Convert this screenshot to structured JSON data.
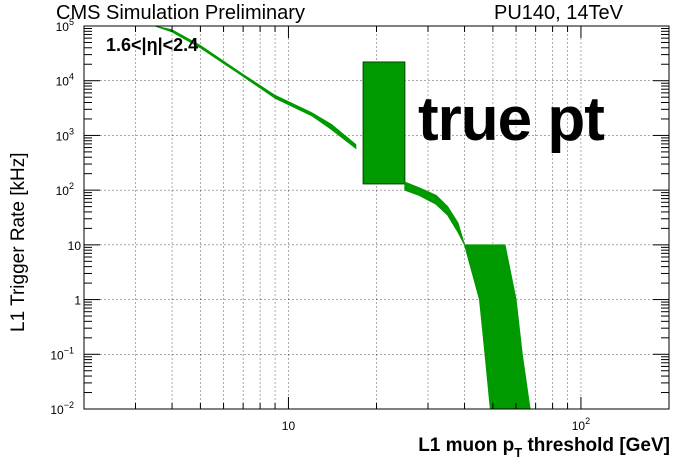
{
  "header": {
    "left": "CMS Simulation Preliminary",
    "right": "PU140, 14TeV"
  },
  "annotations": {
    "region": "1.6<|η|<2.4",
    "overlay": "true pt"
  },
  "chart_data": {
    "type": "area",
    "xlabel_main": "L1 muon p",
    "xlabel_sub": "T",
    "xlabel_tail": " threshold [GeV]",
    "ylabel": "L1 Trigger Rate [kHz]",
    "xscale": "log",
    "yscale": "log",
    "xlim": [
      2,
      200
    ],
    "ylim": [
      0.01,
      100000
    ],
    "grid": true,
    "color": "#009900",
    "x_tick_labels": [
      {
        "value": 10,
        "base": "10",
        "exp": ""
      },
      {
        "value": 100,
        "base": "10",
        "exp": "2"
      }
    ],
    "y_tick_labels": [
      {
        "value": 0.01,
        "base": "10",
        "exp": "−2"
      },
      {
        "value": 0.1,
        "base": "10",
        "exp": "−1"
      },
      {
        "value": 1,
        "base": "1",
        "exp": ""
      },
      {
        "value": 10,
        "base": "10",
        "exp": ""
      },
      {
        "value": 100,
        "base": "10",
        "exp": "2"
      },
      {
        "value": 1000,
        "base": "10",
        "exp": "3"
      },
      {
        "value": 10000,
        "base": "10",
        "exp": "4"
      },
      {
        "value": 100000,
        "base": "10",
        "exp": "5"
      }
    ],
    "series": [
      {
        "band": [
          {
            "x": 3.5,
            "y_low": 100000,
            "y_high": 100000
          },
          {
            "x": 4,
            "y_low": 78000,
            "y_high": 85000
          },
          {
            "x": 5,
            "y_low": 40000,
            "y_high": 44000
          },
          {
            "x": 7,
            "y_low": 12000,
            "y_high": 13000
          },
          {
            "x": 9,
            "y_low": 4800,
            "y_high": 5400
          },
          {
            "x": 12,
            "y_low": 2300,
            "y_high": 2600
          },
          {
            "x": 14,
            "y_low": 1300,
            "y_high": 1600
          },
          {
            "x": 17,
            "y_low": 580,
            "y_high": 680
          }
        ]
      },
      {
        "bins": [
          {
            "x_low": 18,
            "x_high": 25,
            "y_low": 130,
            "y_high": 22000
          }
        ]
      },
      {
        "band": [
          {
            "x": 25,
            "y_low": 100,
            "y_high": 140
          },
          {
            "x": 28,
            "y_low": 80,
            "y_high": 110
          },
          {
            "x": 32,
            "y_low": 55,
            "y_high": 80
          },
          {
            "x": 35,
            "y_low": 35,
            "y_high": 50
          },
          {
            "x": 38,
            "y_low": 17,
            "y_high": 25
          },
          {
            "x": 40,
            "y_low": 10,
            "y_high": 10
          }
        ]
      },
      {
        "band_h": [
          {
            "y": 10,
            "x_low": 40,
            "x_high": 55
          },
          {
            "y": 1,
            "x_low": 45,
            "x_high": 60
          },
          {
            "y": 0.1,
            "x_low": 47,
            "x_high": 63
          },
          {
            "y": 0.01,
            "x_low": 49,
            "x_high": 67
          }
        ]
      }
    ]
  }
}
